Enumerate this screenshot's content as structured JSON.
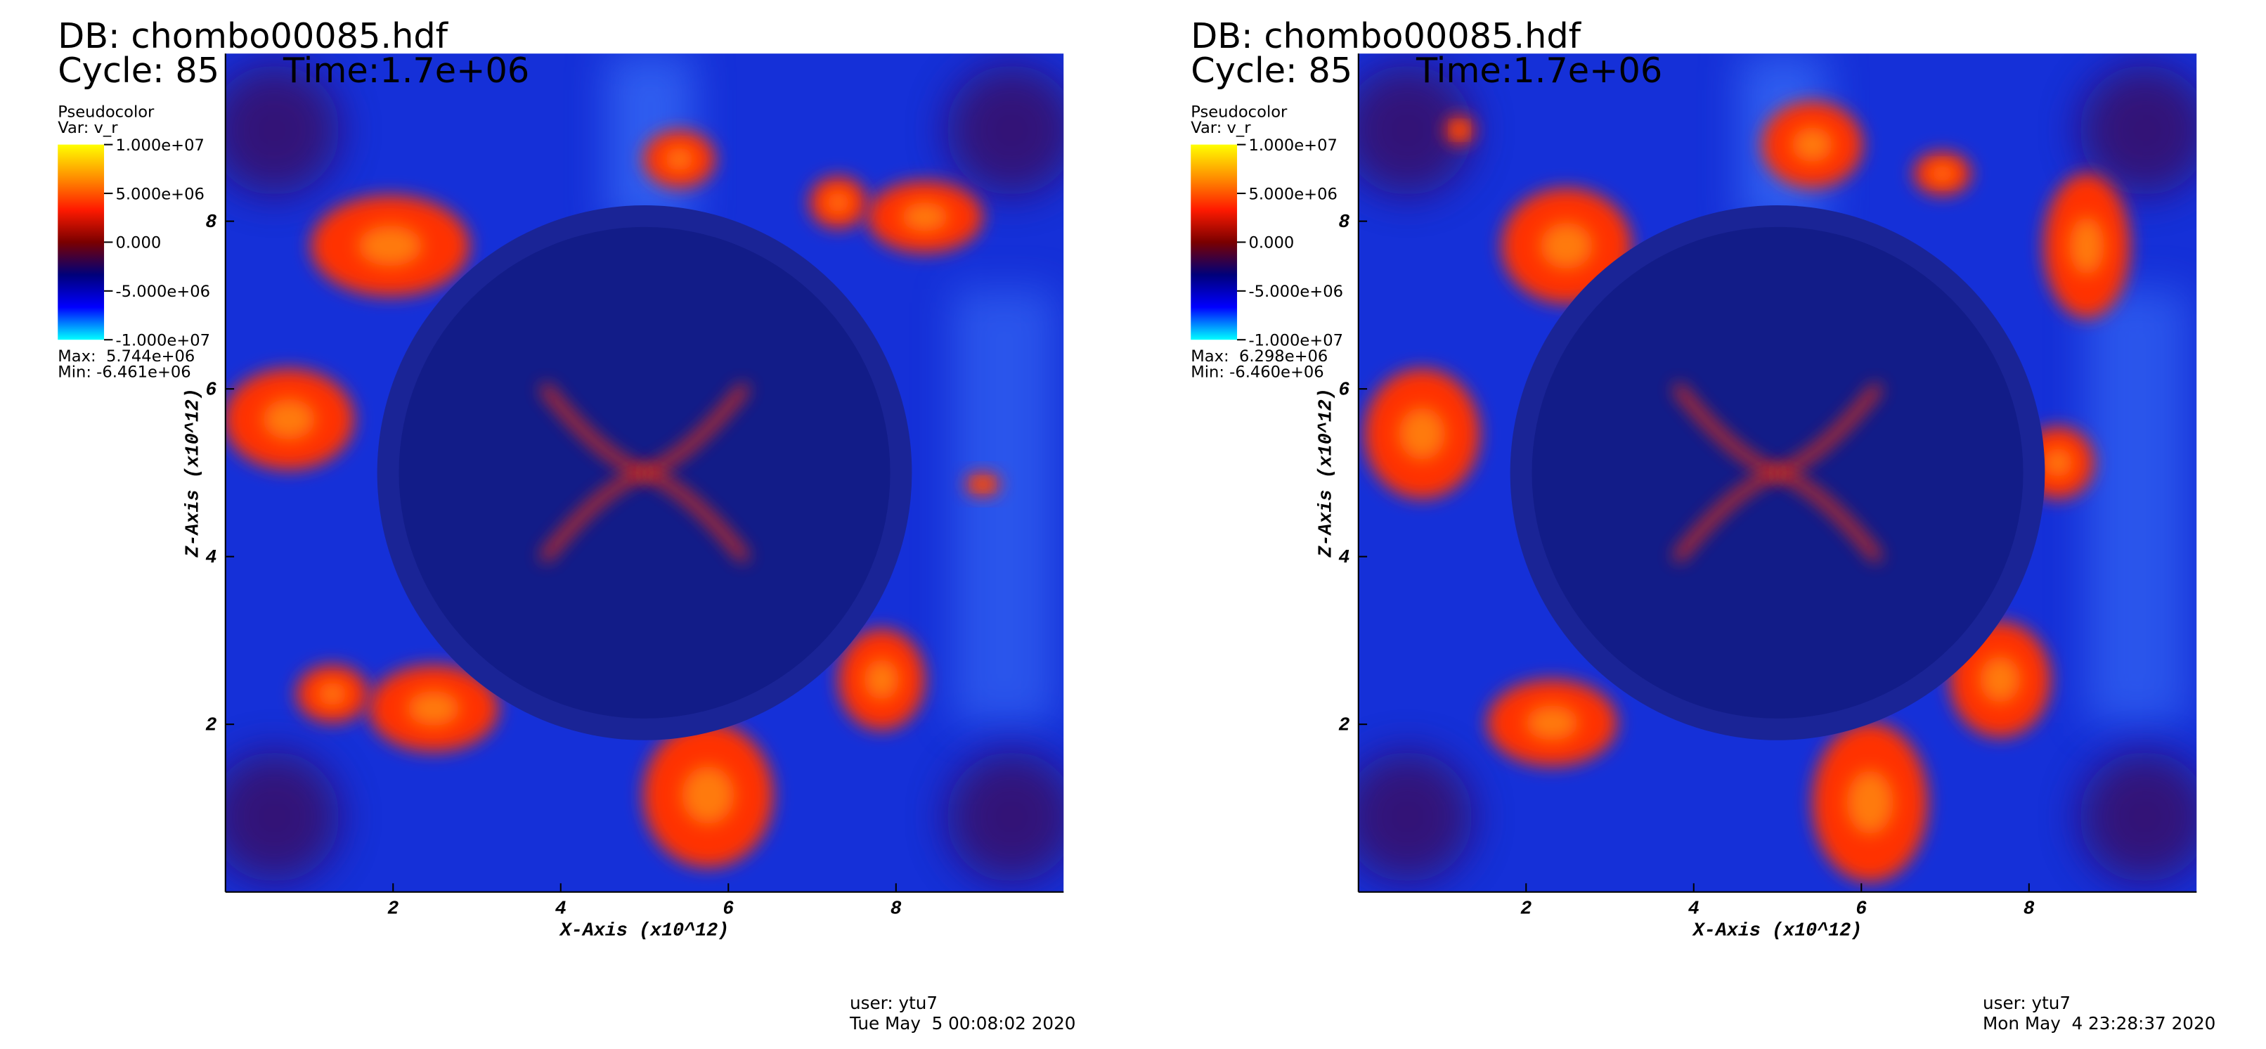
{
  "chart_data": [
    {
      "type": "pseudocolor",
      "database": "DB: chombo00085.hdf",
      "cycle": "Cycle: 85",
      "time": "Time:1.7e+06",
      "legend_title": "Pseudocolor",
      "variable": "Var: v_r",
      "colormap": [
        "#ffff00",
        "#ff9000",
        "#ff1a00",
        "#7a0000",
        "#00007a",
        "#0000ff",
        "#00ffff"
      ],
      "clim": [
        -10000000,
        10000000
      ],
      "cticks": [
        {
          "value": 10000000,
          "label": "1.000e+07"
        },
        {
          "value": 5000000,
          "label": "5.000e+06"
        },
        {
          "value": 0,
          "label": "0.000"
        },
        {
          "value": -5000000,
          "label": "-5.000e+06"
        },
        {
          "value": -10000000,
          "label": "-1.000e+07"
        }
      ],
      "max": "Max:  5.744e+06",
      "min": "Min: -6.461e+06",
      "xlabel": "X-Axis (x10^12)",
      "ylabel": "Z-Axis (x10^12)",
      "xlim": [
        0,
        10
      ],
      "ylim": [
        0,
        10
      ],
      "xticks": [
        2,
        4,
        6,
        8
      ],
      "yticks": [
        2,
        4,
        6,
        8
      ],
      "user": "user: ytu7",
      "date": "Tue May  5 00:08:02 2020"
    },
    {
      "type": "pseudocolor",
      "database": "DB: chombo00085.hdf",
      "cycle": "Cycle: 85",
      "time": "Time:1.7e+06",
      "legend_title": "Pseudocolor",
      "variable": "Var: v_r",
      "colormap": [
        "#ffff00",
        "#ff9000",
        "#ff1a00",
        "#7a0000",
        "#00007a",
        "#0000ff",
        "#00ffff"
      ],
      "clim": [
        -10000000,
        10000000
      ],
      "cticks": [
        {
          "value": 10000000,
          "label": "1.000e+07"
        },
        {
          "value": 5000000,
          "label": "5.000e+06"
        },
        {
          "value": 0,
          "label": "0.000"
        },
        {
          "value": -5000000,
          "label": "-5.000e+06"
        },
        {
          "value": -10000000,
          "label": "-1.000e+07"
        }
      ],
      "max": "Max:  6.298e+06",
      "min": "Min: -6.460e+06",
      "xlabel": "X-Axis (x10^12)",
      "ylabel": "Z-Axis (x10^12)",
      "xlim": [
        0,
        10
      ],
      "ylim": [
        0,
        10
      ],
      "xticks": [
        2,
        4,
        6,
        8
      ],
      "yticks": [
        2,
        4,
        6,
        8
      ],
      "user": "user: ytu7",
      "date": "Mon May  4 23:28:37 2020"
    }
  ]
}
